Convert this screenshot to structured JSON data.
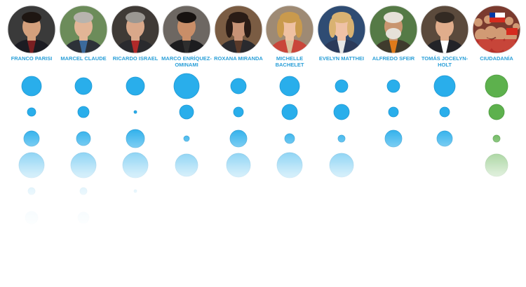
{
  "chart_data": {
    "type": "bubble-matrix",
    "columns": [
      {
        "name": "FRANCO PARISI",
        "portrait": "photo-man-suit",
        "values": [
          14,
          6,
          11,
          18,
          5,
          9
        ]
      },
      {
        "name": "MARCEL CLAUDE",
        "portrait": "photo-man-grey-hair",
        "values": [
          12,
          8,
          10,
          18,
          5,
          8
        ]
      },
      {
        "name": "RICARDO ISRAEL",
        "portrait": "photo-man-glasses",
        "values": [
          13,
          2,
          13,
          18,
          2,
          0
        ]
      },
      {
        "name": "MARCO ENRÍQUEZ-OMINAMI",
        "portrait": "photo-man-dark-hair",
        "values": [
          18,
          10,
          4,
          16,
          0,
          0
        ]
      },
      {
        "name": "ROXANA MIRANDA",
        "portrait": "photo-woman-dark-hair",
        "values": [
          11,
          7,
          12,
          17,
          0,
          0
        ]
      },
      {
        "name": "MICHELLE BACHELET",
        "portrait": "photo-woman-blonde",
        "values": [
          14,
          11,
          7,
          18,
          0,
          0
        ]
      },
      {
        "name": "EVELYN MATTHEI",
        "portrait": "photo-woman-blonde-short",
        "values": [
          9,
          11,
          5,
          17,
          0,
          0
        ]
      },
      {
        "name": "ALFREDO SFEIR",
        "portrait": "photo-man-white-beard",
        "values": [
          9,
          7,
          12,
          0,
          0,
          0
        ]
      },
      {
        "name": "TOMÁS JOCELYN-HOLT",
        "portrait": "photo-man-glasses-suit",
        "values": [
          15,
          7,
          11,
          0,
          0,
          0
        ]
      },
      {
        "name": "CIUDADANÍA",
        "portrait": "photo-crowd-flags",
        "values": [
          16,
          11,
          5,
          16,
          0,
          0
        ]
      }
    ],
    "colors": {
      "candidate": "#29aeeb",
      "citizens": "#5db14d",
      "label": "#2a9fd8"
    },
    "grid": false
  }
}
